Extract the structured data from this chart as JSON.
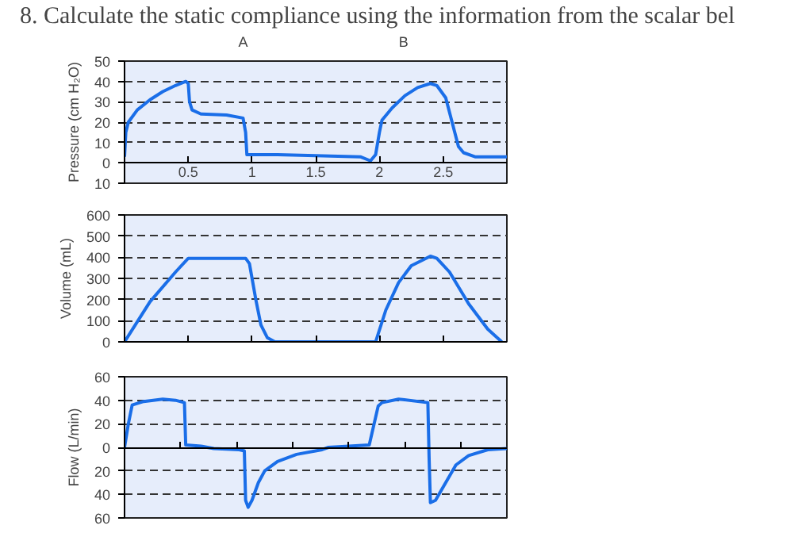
{
  "chart_data": [
    {
      "type": "line",
      "title": "8. Calculate the static compliance using the information from the scalar bel",
      "ylabel": "Pressure (cm H₂O)",
      "annotations": [
        "A",
        "B"
      ],
      "xlim": [
        0,
        3
      ],
      "ylim": [
        -10,
        50
      ],
      "xticks": [
        0.5,
        1,
        1.5,
        2,
        2.5
      ],
      "yticks": [
        {
          "value": -10,
          "label": "10"
        },
        0,
        10,
        20,
        30,
        40,
        50
      ],
      "grid": "y",
      "series": [
        {
          "color": "#1a6ee8",
          "x": [
            0,
            0.01,
            0.03,
            0.1,
            0.2,
            0.3,
            0.4,
            0.48,
            0.5,
            0.51,
            0.53,
            0.6,
            0.8,
            0.93,
            0.95,
            0.96,
            1.2,
            1.5,
            1.85,
            1.93,
            1.97,
            2.0,
            2.02,
            2.1,
            2.2,
            2.3,
            2.4,
            2.45,
            2.52,
            2.57,
            2.62,
            2.66,
            2.75,
            3.0
          ],
          "values": [
            3,
            15,
            20,
            26,
            31,
            35,
            38,
            40,
            39,
            30,
            26,
            24,
            23.5,
            22,
            15,
            4,
            4,
            3.5,
            3,
            1,
            4,
            15,
            21,
            27,
            33,
            37,
            39,
            38,
            32,
            20,
            8,
            5,
            3,
            3
          ]
        }
      ]
    },
    {
      "type": "line",
      "ylabel": "Volume (mL)",
      "xlim": [
        0,
        3
      ],
      "ylim": [
        0,
        600
      ],
      "xticks": [
        {
          "value": 0.5,
          "label": null
        },
        {
          "value": 1,
          "label": null
        },
        {
          "value": 1.5,
          "label": null
        },
        {
          "value": 2,
          "label": null
        },
        {
          "value": 2.5,
          "label": null
        }
      ],
      "yticks": [
        0,
        100,
        200,
        300,
        400,
        500,
        600
      ],
      "grid": "y",
      "tick_labels": "y",
      "series": [
        {
          "color": "#1a6ee8",
          "x": [
            0,
            0.2,
            0.4,
            0.5,
            0.95,
            0.98,
            1.03,
            1.07,
            1.12,
            1.18,
            1.97,
            2.05,
            2.15,
            2.25,
            2.4,
            2.45,
            2.55,
            2.7,
            2.85,
            2.96
          ],
          "values": [
            0,
            190,
            330,
            395,
            395,
            370,
            200,
            80,
            20,
            0,
            0,
            150,
            280,
            360,
            405,
            395,
            330,
            180,
            60,
            0
          ]
        }
      ]
    },
    {
      "type": "line",
      "ylabel": "Flow (L/min)",
      "xlim": [
        0,
        3
      ],
      "ylim": [
        -60,
        60
      ],
      "xticks": [
        {
          "value": 0.44,
          "label": null
        },
        {
          "value": 0.88,
          "label": null
        },
        {
          "value": 1.32,
          "label": null
        },
        {
          "value": 1.76,
          "label": null
        },
        {
          "value": 2.2,
          "label": null
        },
        {
          "value": 2.64,
          "label": null
        }
      ],
      "yticks": [
        {
          "value": -60,
          "label": "60"
        },
        {
          "value": -40,
          "label": "40"
        },
        {
          "value": -20,
          "label": "20"
        },
        0,
        20,
        40,
        60
      ],
      "grid": "y",
      "tick_labels": "y",
      "series": [
        {
          "color": "#1a6ee8",
          "x": [
            0,
            0.03,
            0.06,
            0.15,
            0.3,
            0.4,
            0.47,
            0.48,
            0.6,
            0.7,
            0.9,
            0.94,
            0.95,
            0.97,
            1.0,
            1.05,
            1.1,
            1.2,
            1.35,
            1.55,
            1.6,
            1.92,
            1.99,
            2.02,
            2.15,
            2.38,
            2.39,
            2.4,
            2.44,
            2.52,
            2.6,
            2.7,
            2.85,
            3.0
          ],
          "values": [
            0,
            20,
            36,
            39,
            41,
            40,
            38,
            2,
            1,
            -1,
            -2,
            -3,
            -45,
            -51,
            -45,
            -30,
            -20,
            -12,
            -6,
            -2,
            0,
            2,
            35,
            38,
            41,
            38,
            -10,
            -47,
            -45,
            -30,
            -15,
            -7,
            -2,
            -1
          ]
        }
      ]
    }
  ]
}
